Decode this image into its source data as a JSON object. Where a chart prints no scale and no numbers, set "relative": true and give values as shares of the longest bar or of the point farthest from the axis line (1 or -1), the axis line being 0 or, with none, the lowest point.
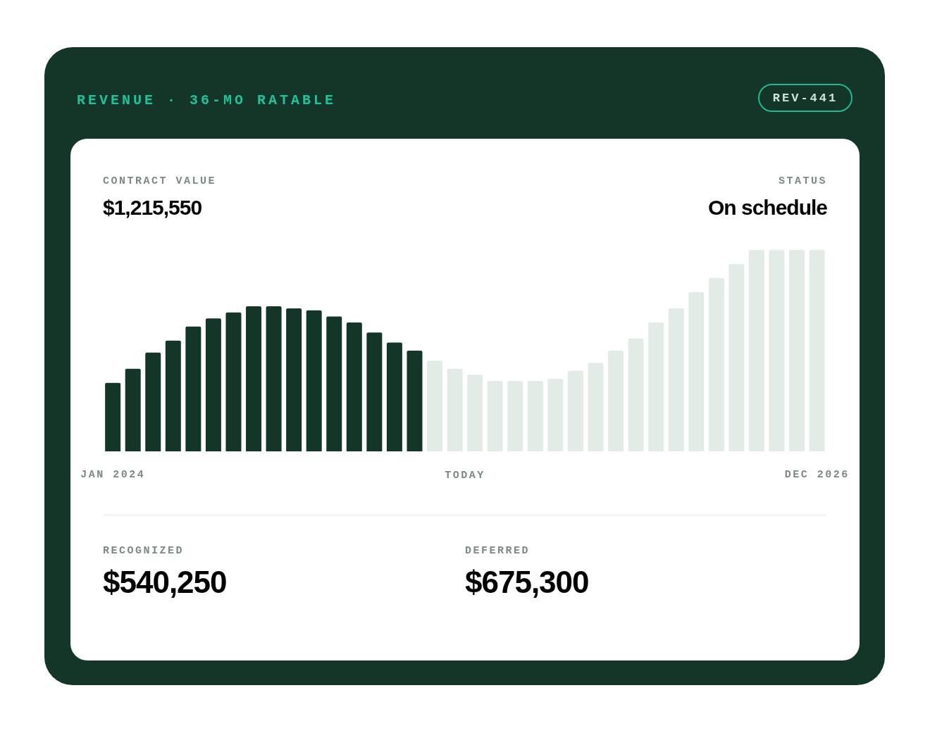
{
  "chart_data": {
    "type": "bar",
    "title": "REVENUE · 36-MO RATABLE",
    "relative": true,
    "legend": false,
    "grid": false,
    "categories": [
      "JAN 2024",
      null,
      null,
      null,
      null,
      null,
      null,
      null,
      null,
      null,
      null,
      null,
      null,
      null,
      null,
      null,
      null,
      null,
      null,
      null,
      null,
      null,
      null,
      null,
      null,
      null,
      null,
      null,
      null,
      null,
      null,
      null,
      null,
      null,
      null,
      "DEC 2026"
    ],
    "values": [
      0.34,
      0.41,
      0.49,
      0.55,
      0.62,
      0.66,
      0.69,
      0.72,
      0.72,
      0.71,
      0.7,
      0.67,
      0.64,
      0.59,
      0.54,
      0.5,
      0.45,
      0.41,
      0.38,
      0.35,
      0.35,
      0.35,
      0.36,
      0.4,
      0.44,
      0.5,
      0.56,
      0.64,
      0.71,
      0.79,
      0.86,
      0.93,
      1,
      1,
      1,
      1
    ],
    "colors": [
      "#143628",
      "#143628",
      "#143628",
      "#143628",
      "#143628",
      "#143628",
      "#143628",
      "#143628",
      "#143628",
      "#143628",
      "#143628",
      "#143628",
      "#143628",
      "#143628",
      "#143628",
      "#143628",
      "#e3ebe6",
      "#e3ebe6",
      "#e3ebe6",
      "#e3ebe6",
      "#e3ebe6",
      "#e3ebe6",
      "#e3ebe6",
      "#e3ebe6",
      "#e3ebe6",
      "#e3ebe6",
      "#e3ebe6",
      "#e3ebe6",
      "#e3ebe6",
      "#e3ebe6",
      "#e3ebe6",
      "#e3ebe6",
      "#e3ebe6",
      "#e3ebe6",
      "#e3ebe6",
      "#e3ebe6"
    ],
    "annotations": [
      "REV-441",
      "CONTRACT VALUE",
      "$1,215,550",
      "STATUS",
      "On schedule",
      "TODAY",
      "RECOGNIZED",
      "$540,250",
      "DEFERRED",
      "$675,300"
    ]
  }
}
